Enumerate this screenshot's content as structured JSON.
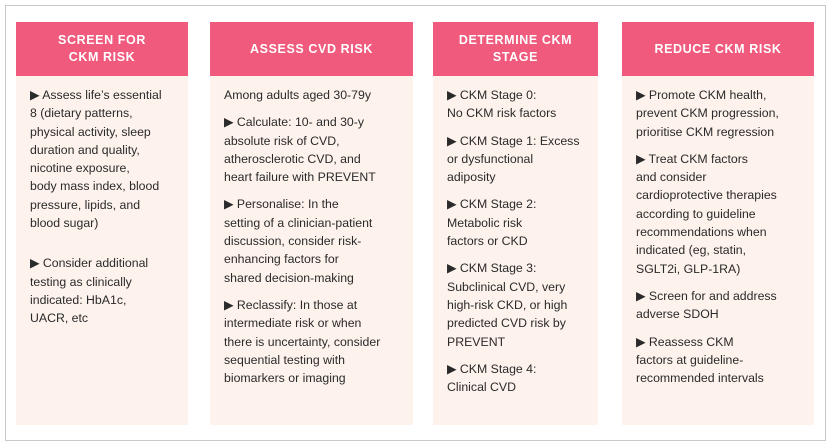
{
  "columns": [
    {
      "title": [
        "SCREEN FOR",
        "CKM RISK"
      ],
      "items": [
        {
          "lines": [
            "▶ Assess life’s essential",
            "8 (dietary patterns,",
            "physical activity, sleep",
            "duration and quality,",
            "nicotine exposure,",
            "body mass index, blood",
            "pressure, lipids, and",
            "blood sugar)"
          ]
        },
        {
          "lines": [
            "▶ Consider additional",
            "testing as clinically",
            "indicated: HbA1c,",
            "UACR, etc"
          ]
        }
      ]
    },
    {
      "title": [
        "ASSESS CVD RISK"
      ],
      "items": [
        {
          "lines": [
            "Among adults aged 30-79y"
          ]
        },
        {
          "lines": [
            "▶ Calculate: 10- and 30-y",
            "absolute risk of CVD,",
            "atherosclerotic CVD, and",
            "heart failure with PREVENT"
          ]
        },
        {
          "lines": [
            "▶ Personalise: In the",
            "setting of a clinician-patient",
            "discussion, consider risk-",
            "enhancing factors for",
            "shared decision-making"
          ]
        },
        {
          "lines": [
            "▶ Reclassify: In those at",
            "intermediate risk or when",
            "there is uncertainty, consider",
            "sequential testing with",
            "biomarkers or imaging"
          ]
        }
      ]
    },
    {
      "title": [
        "DETERMINE CKM",
        "STAGE"
      ],
      "items": [
        {
          "lines": [
            "▶ CKM Stage 0:",
            "No CKM risk factors"
          ]
        },
        {
          "lines": [
            "▶ CKM Stage 1: Excess",
            "or dysfunctional",
            "adiposity"
          ]
        },
        {
          "lines": [
            "▶ CKM Stage 2:",
            "Metabolic risk",
            "factors or CKD"
          ]
        },
        {
          "lines": [
            "▶ CKM Stage 3:",
            "Subclinical CVD, very",
            "high-risk CKD, or high",
            "predicted CVD risk by",
            "PREVENT"
          ]
        },
        {
          "lines": [
            "▶ CKM Stage 4:",
            "Clinical CVD"
          ]
        }
      ]
    },
    {
      "title": [
        "REDUCE CKM RISK"
      ],
      "items": [
        {
          "lines": [
            "▶ Promote CKM health,",
            "prevent CKM progression,",
            "prioritise CKM regression"
          ]
        },
        {
          "lines": [
            "▶ Treat CKM factors",
            "and consider",
            "cardioprotective therapies",
            "according to guideline",
            "recommendations when",
            "indicated (eg, statin,",
            "SGLT2i, GLP-1RA)"
          ]
        },
        {
          "lines": [
            "▶ Screen for and address",
            "adverse SDOH"
          ]
        },
        {
          "lines": [
            "▶ Reassess CKM",
            "factors at guideline-",
            "recommended intervals"
          ]
        }
      ]
    }
  ]
}
